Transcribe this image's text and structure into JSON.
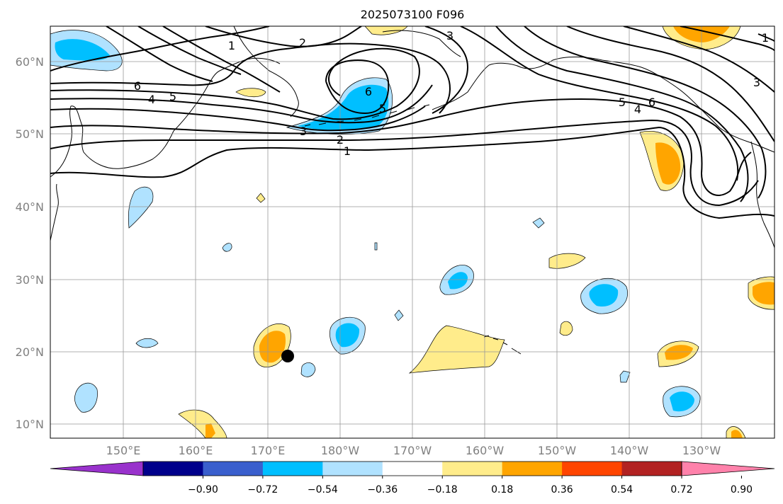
{
  "title": "2025073100 F096",
  "map": {
    "lon_ticks": [
      "150°E",
      "160°E",
      "170°E",
      "180°W",
      "170°W",
      "160°W",
      "150°W",
      "140°W",
      "130°W"
    ],
    "lat_ticks": [
      "60°N",
      "50°N",
      "40°N",
      "30°N",
      "20°N",
      "10°N"
    ],
    "contour_labels": [
      "1",
      "2",
      "3",
      "4",
      "5",
      "6"
    ],
    "marker": {
      "label": "storm-position",
      "lon": 173.0,
      "lat": 19.3
    }
  },
  "colorbar": {
    "ticks": [
      "−0.90",
      "−0.72",
      "−0.54",
      "−0.36",
      "−0.18",
      "0.18",
      "0.36",
      "0.54",
      "0.72",
      "0.90"
    ],
    "colors": [
      "#9932cc",
      "#00008b",
      "#3a5fcd",
      "#00bfff",
      "#b0e2ff",
      "#ffffff",
      "#ffec8b",
      "#ffa500",
      "#ff4500",
      "#b22222",
      "#ff82ab"
    ]
  }
}
